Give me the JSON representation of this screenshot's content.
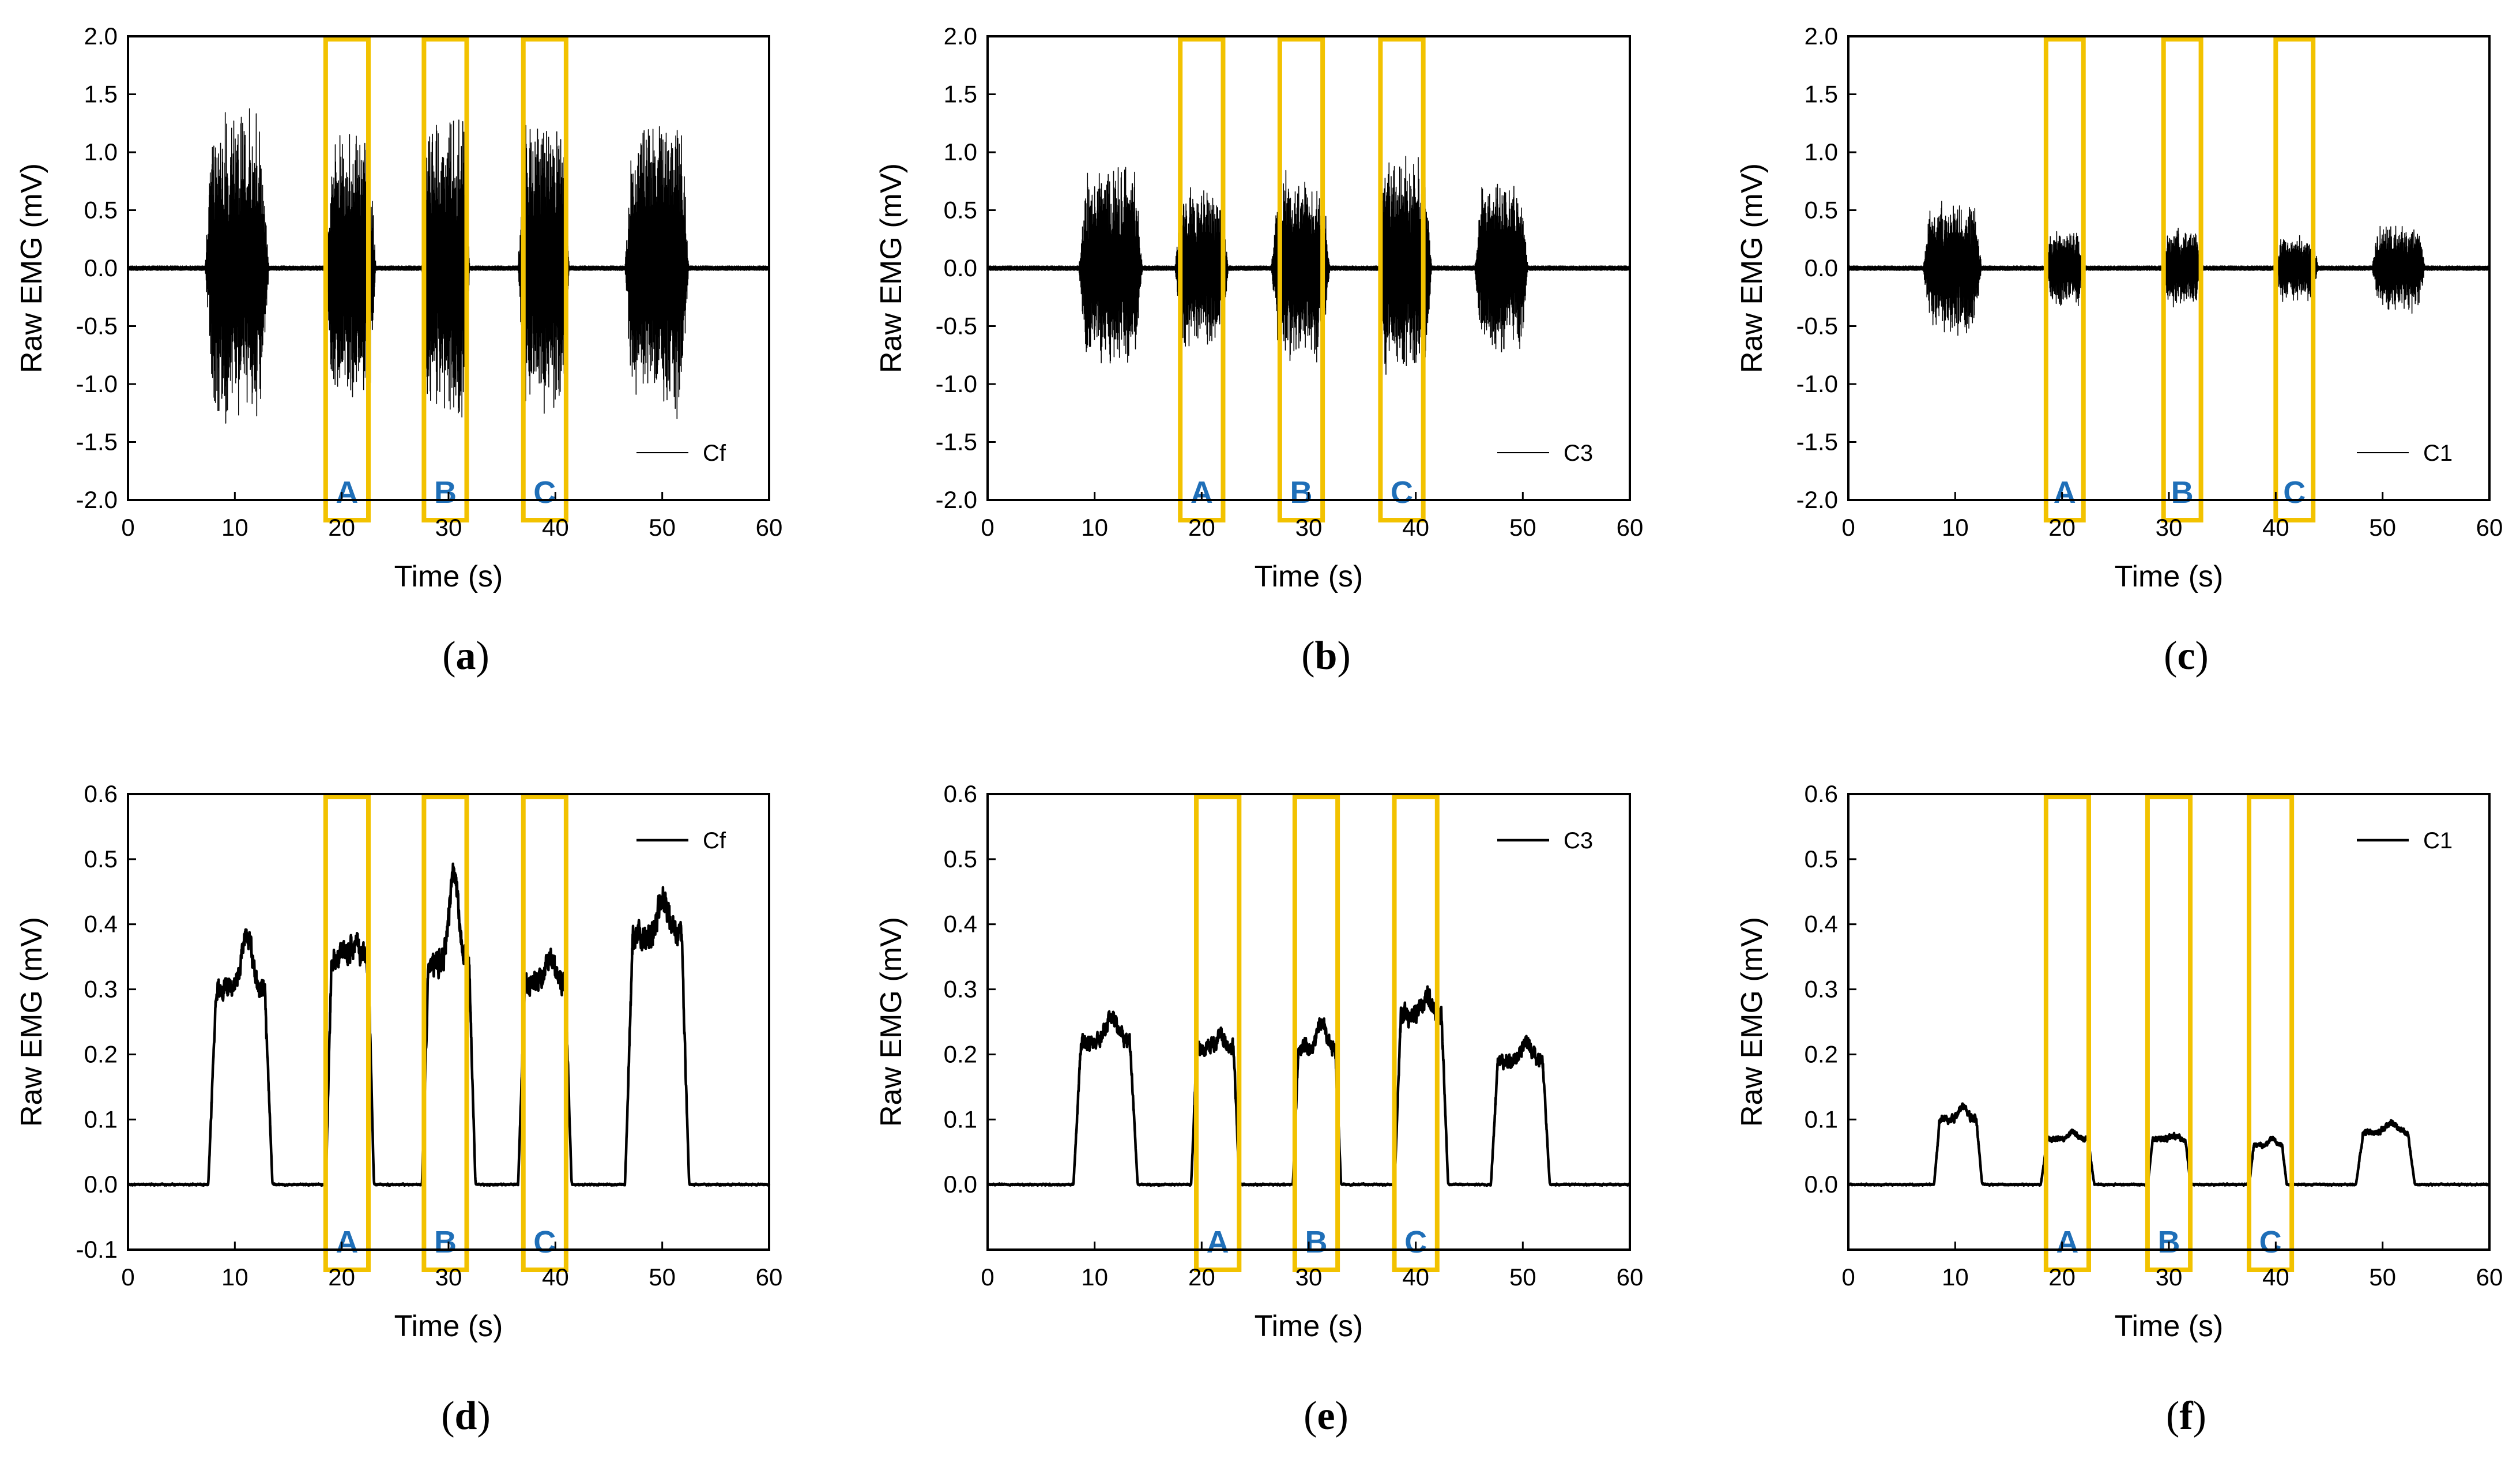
{
  "colors": {
    "signal": "#000000",
    "highlight_box": "#f2c200",
    "box_label": "#1f6fb8",
    "axis": "#000000"
  },
  "chart_data": [
    {
      "id": "a",
      "type": "line",
      "caption": "a",
      "xlabel": "Time (s)",
      "ylabel": "Raw EMG (mV)",
      "xlim": [
        0,
        60
      ],
      "ylim": [
        -2.0,
        2.0
      ],
      "xticks": [
        0,
        10,
        20,
        30,
        40,
        50,
        60
      ],
      "yticks": [
        -2.0,
        -1.5,
        -1.0,
        -0.5,
        0.0,
        0.5,
        1.0,
        1.5,
        2.0
      ],
      "tick_decimals": 1,
      "legend": "Cf",
      "signal": "raw",
      "series": [
        {
          "name": "Cf",
          "bursts": [
            {
              "start": 7.2,
              "end": 13.2,
              "amp": 1.4
            },
            {
              "start": 18.5,
              "end": 23.2,
              "amp": 1.25
            },
            {
              "start": 27.5,
              "end": 32.0,
              "amp": 1.4
            },
            {
              "start": 36.5,
              "end": 41.3,
              "amp": 1.35
            },
            {
              "start": 46.5,
              "end": 52.5,
              "amp": 1.35
            }
          ]
        }
      ],
      "highlights": [
        {
          "label": "A",
          "x0": 18.5,
          "x1": 22.5
        },
        {
          "label": "B",
          "x0": 27.7,
          "x1": 31.7
        },
        {
          "label": "C",
          "x0": 37.0,
          "x1": 41.0
        }
      ]
    },
    {
      "id": "b",
      "type": "line",
      "caption": "b",
      "xlabel": "Time (s)",
      "ylabel": "Raw EMG (mV)",
      "xlim": [
        0,
        60
      ],
      "ylim": [
        -2.0,
        2.0
      ],
      "xticks": [
        0,
        10,
        20,
        30,
        40,
        50,
        60
      ],
      "yticks": [
        -2.0,
        -1.5,
        -1.0,
        -0.5,
        0.0,
        0.5,
        1.0,
        1.5,
        2.0
      ],
      "tick_decimals": 1,
      "legend": "C3",
      "signal": "raw",
      "series": [
        {
          "name": "C3",
          "bursts": [
            {
              "start": 8.5,
              "end": 14.5,
              "amp": 0.9
            },
            {
              "start": 17.5,
              "end": 22.5,
              "amp": 0.75
            },
            {
              "start": 26.5,
              "end": 32.0,
              "amp": 0.85
            },
            {
              "start": 36.5,
              "end": 41.5,
              "amp": 1.05
            },
            {
              "start": 45.5,
              "end": 50.5,
              "amp": 0.8
            }
          ]
        }
      ],
      "highlights": [
        {
          "label": "A",
          "x0": 18.0,
          "x1": 22.0
        },
        {
          "label": "B",
          "x0": 27.3,
          "x1": 31.3
        },
        {
          "label": "C",
          "x0": 36.7,
          "x1": 40.7
        }
      ]
    },
    {
      "id": "c",
      "type": "line",
      "caption": "c",
      "xlabel": "Time (s)",
      "ylabel": "Raw EMG (mV)",
      "xlim": [
        0,
        60
      ],
      "ylim": [
        -2.0,
        2.0
      ],
      "xticks": [
        0,
        10,
        20,
        30,
        40,
        50,
        60
      ],
      "yticks": [
        -2.0,
        -1.5,
        -1.0,
        -0.5,
        0.0,
        0.5,
        1.0,
        1.5,
        2.0
      ],
      "tick_decimals": 1,
      "legend": "C1",
      "signal": "raw",
      "series": [
        {
          "name": "C1",
          "bursts": [
            {
              "start": 7.0,
              "end": 12.5,
              "amp": 0.6
            },
            {
              "start": 18.5,
              "end": 22.0,
              "amp": 0.35
            },
            {
              "start": 29.5,
              "end": 33.0,
              "amp": 0.35
            },
            {
              "start": 40.0,
              "end": 44.0,
              "amp": 0.3
            },
            {
              "start": 49.0,
              "end": 54.0,
              "amp": 0.4
            }
          ]
        }
      ],
      "highlights": [
        {
          "label": "A",
          "x0": 18.5,
          "x1": 22.0
        },
        {
          "label": "B",
          "x0": 29.5,
          "x1": 33.0
        },
        {
          "label": "C",
          "x0": 40.0,
          "x1": 43.5
        }
      ]
    },
    {
      "id": "d",
      "type": "line",
      "caption": "d",
      "xlabel": "Time (s)",
      "ylabel": "Raw EMG (mV)",
      "xlim": [
        0,
        60
      ],
      "ylim": [
        -0.1,
        0.6
      ],
      "xticks": [
        0,
        10,
        20,
        30,
        40,
        50,
        60
      ],
      "yticks": [
        -0.1,
        0.0,
        0.1,
        0.2,
        0.3,
        0.4,
        0.5,
        0.6
      ],
      "tick_decimals": 1,
      "legend": "Cf",
      "signal": "envelope",
      "series": [
        {
          "name": "Cf",
          "bursts": [
            {
              "start": 7.5,
              "end": 13.5,
              "amp": 0.3,
              "peak": 0.38
            },
            {
              "start": 18.5,
              "end": 23.0,
              "amp": 0.35,
              "peak": 0.37
            },
            {
              "start": 27.5,
              "end": 32.5,
              "amp": 0.34,
              "peak": 0.48
            },
            {
              "start": 36.5,
              "end": 41.5,
              "amp": 0.31,
              "peak": 0.35
            },
            {
              "start": 46.5,
              "end": 52.5,
              "amp": 0.38,
              "peak": 0.44
            }
          ]
        }
      ],
      "highlights": [
        {
          "label": "A",
          "x0": 18.5,
          "x1": 22.5
        },
        {
          "label": "B",
          "x0": 27.7,
          "x1": 31.7
        },
        {
          "label": "C",
          "x0": 37.0,
          "x1": 41.0
        }
      ]
    },
    {
      "id": "e",
      "type": "line",
      "caption": "e",
      "xlabel": "Time (s)",
      "ylabel": "Raw EMG (mV)",
      "xlim": [
        0,
        60
      ],
      "ylim": [
        -0.1,
        0.6
      ],
      "xticks": [
        0,
        10,
        20,
        30,
        40,
        50,
        60
      ],
      "yticks": [
        0.0,
        0.1,
        0.2,
        0.3,
        0.4,
        0.5,
        0.6
      ],
      "tick_decimals": 1,
      "legend": "C3",
      "signal": "envelope",
      "series": [
        {
          "name": "C3",
          "bursts": [
            {
              "start": 8.0,
              "end": 14.0,
              "amp": 0.22,
              "peak": 0.26
            },
            {
              "start": 19.0,
              "end": 23.5,
              "amp": 0.21,
              "peak": 0.23
            },
            {
              "start": 28.5,
              "end": 33.0,
              "amp": 0.21,
              "peak": 0.25
            },
            {
              "start": 38.0,
              "end": 43.0,
              "amp": 0.26,
              "peak": 0.29
            },
            {
              "start": 47.0,
              "end": 52.5,
              "amp": 0.19,
              "peak": 0.22
            }
          ]
        }
      ],
      "highlights": [
        {
          "label": "A",
          "x0": 19.5,
          "x1": 23.5
        },
        {
          "label": "B",
          "x0": 28.7,
          "x1": 32.7
        },
        {
          "label": "C",
          "x0": 38.0,
          "x1": 42.0
        }
      ]
    },
    {
      "id": "f",
      "type": "line",
      "caption": "f",
      "xlabel": "Time (s)",
      "ylabel": "Raw EMG (mV)",
      "xlim": [
        0,
        60
      ],
      "ylim": [
        -0.1,
        0.6
      ],
      "xticks": [
        0,
        10,
        20,
        30,
        40,
        50,
        60
      ],
      "yticks": [
        0.0,
        0.1,
        0.2,
        0.3,
        0.4,
        0.5,
        0.6
      ],
      "tick_decimals": 1,
      "legend": "C1",
      "signal": "envelope",
      "series": [
        {
          "name": "C1",
          "bursts": [
            {
              "start": 8.0,
              "end": 12.5,
              "amp": 0.1,
              "peak": 0.12
            },
            {
              "start": 18.0,
              "end": 23.0,
              "amp": 0.07,
              "peak": 0.08
            },
            {
              "start": 28.0,
              "end": 32.0,
              "amp": 0.07,
              "peak": 0.075
            },
            {
              "start": 37.5,
              "end": 41.0,
              "amp": 0.06,
              "peak": 0.07
            },
            {
              "start": 47.5,
              "end": 53.0,
              "amp": 0.08,
              "peak": 0.095
            }
          ]
        }
      ],
      "highlights": [
        {
          "label": "A",
          "x0": 18.5,
          "x1": 22.5
        },
        {
          "label": "B",
          "x0": 28.0,
          "x1": 32.0
        },
        {
          "label": "C",
          "x0": 37.5,
          "x1": 41.5
        }
      ]
    }
  ]
}
